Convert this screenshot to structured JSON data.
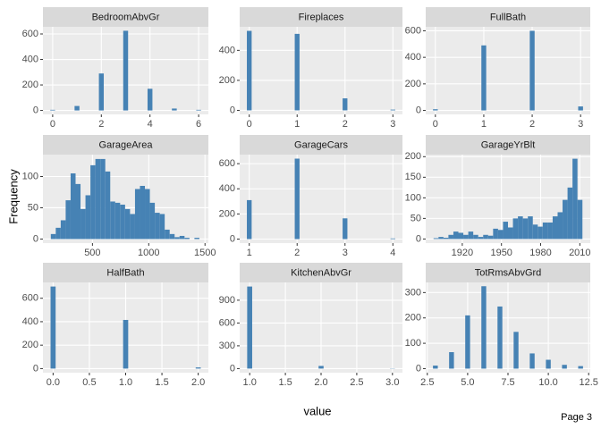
{
  "y_label": "Frequency",
  "x_label": "value",
  "page": "Page 3",
  "chart_data": [
    {
      "type": "histogram",
      "title": "BedroomAbvGr",
      "color": "#4682b4",
      "grid": true,
      "bins": [
        -0.1,
        0.1,
        0.9,
        1.1,
        1.9,
        2.1,
        2.9,
        3.1,
        3.9,
        4.1,
        4.9,
        5.1,
        5.9,
        6.1
      ],
      "counts": [
        5,
        0,
        35,
        0,
        290,
        0,
        625,
        0,
        170,
        0,
        15,
        0,
        5
      ],
      "xlim": [
        -0.4,
        6.4
      ],
      "ylim": [
        -31,
        656
      ],
      "xticks": [
        0,
        2,
        4,
        6
      ],
      "yticks": [
        0,
        200,
        400,
        600
      ]
    },
    {
      "type": "histogram",
      "title": "Fireplaces",
      "color": "#4682b4",
      "grid": true,
      "bins": [
        -0.05,
        0.05,
        0.95,
        1.05,
        1.95,
        2.05,
        2.95,
        3.05
      ],
      "counts": [
        530,
        0,
        510,
        0,
        80,
        0,
        5
      ],
      "xlim": [
        -0.2,
        3.2
      ],
      "ylim": [
        -27,
        557
      ],
      "xticks": [
        0,
        1,
        2,
        3
      ],
      "yticks": [
        0,
        200,
        400
      ]
    },
    {
      "type": "histogram",
      "title": "FullBath",
      "color": "#4682b4",
      "grid": true,
      "bins": [
        -0.05,
        0.05,
        0.95,
        1.05,
        1.95,
        2.05,
        2.95,
        3.05
      ],
      "counts": [
        9,
        0,
        490,
        0,
        600,
        0,
        30
      ],
      "xlim": [
        -0.2,
        3.2
      ],
      "ylim": [
        -30,
        630
      ],
      "xticks": [
        0,
        1,
        2,
        3
      ],
      "yticks": [
        0,
        200,
        400,
        600
      ]
    },
    {
      "type": "histogram",
      "title": "GarageArea",
      "color": "#4682b4",
      "grid": true,
      "bins": [
        130,
        174,
        218,
        262,
        306,
        350,
        394,
        438,
        482,
        526,
        570,
        614,
        658,
        702,
        746,
        790,
        834,
        878,
        922,
        966,
        1010,
        1054,
        1098,
        1142,
        1186,
        1230,
        1274,
        1318,
        1362,
        1406,
        1450
      ],
      "counts": [
        8,
        18,
        30,
        62,
        105,
        88,
        48,
        70,
        118,
        128,
        128,
        108,
        60,
        58,
        55,
        48,
        40,
        80,
        85,
        80,
        58,
        42,
        40,
        15,
        8,
        3,
        5,
        2,
        0,
        2
      ],
      "xlim": [
        60,
        1530
      ],
      "ylim": [
        -6.5,
        135
      ],
      "xticks": [
        500,
        1000,
        1500
      ],
      "yticks": [
        0,
        50,
        100
      ]
    },
    {
      "type": "histogram",
      "title": "GarageCars",
      "color": "#4682b4",
      "grid": true,
      "bins": [
        0.95,
        1.05,
        1.95,
        2.05,
        2.95,
        3.05,
        3.95,
        4.05
      ],
      "counts": [
        310,
        0,
        640,
        0,
        165,
        0,
        5
      ],
      "xlim": [
        0.8,
        4.2
      ],
      "ylim": [
        -32,
        672
      ],
      "xticks": [
        1,
        2,
        3,
        4
      ],
      "yticks": [
        0,
        200,
        400,
        600
      ]
    },
    {
      "type": "histogram",
      "title": "GarageYrBlt",
      "color": "#4682b4",
      "grid": true,
      "bins": [
        1898,
        1901.8,
        1905.6,
        1909.4,
        1913.2,
        1917,
        1920.8,
        1924.6,
        1928.4,
        1932.2,
        1936,
        1939.8,
        1943.6,
        1947.4,
        1951.2,
        1955,
        1958.8,
        1962.6,
        1966.4,
        1970.2,
        1974,
        1977.8,
        1981.6,
        1985.4,
        1989.2,
        1993,
        1996.8,
        2000.6,
        2004.4,
        2008.2,
        2012
      ],
      "counts": [
        2,
        5,
        3,
        10,
        18,
        15,
        10,
        18,
        10,
        5,
        10,
        8,
        25,
        22,
        42,
        28,
        50,
        55,
        50,
        55,
        35,
        30,
        40,
        40,
        55,
        65,
        95,
        125,
        195,
        95
      ],
      "xlim": [
        1892,
        2018
      ],
      "ylim": [
        -10,
        205
      ],
      "xticks": [
        1920,
        1950,
        1980,
        2010
      ],
      "yticks": [
        0,
        50,
        100,
        150,
        200
      ]
    },
    {
      "type": "histogram",
      "title": "HalfBath",
      "color": "#4682b4",
      "grid": true,
      "bins": [
        -0.035,
        0.035,
        0.965,
        1.035,
        1.965,
        2.035
      ],
      "counts": [
        700,
        0,
        415,
        0,
        10
      ],
      "xlim": [
        -0.14,
        2.14
      ],
      "ylim": [
        -35,
        735
      ],
      "xticks": [
        {
          "value": 0,
          "label": "0.0"
        },
        0.5,
        {
          "value": 1,
          "label": "1.0"
        },
        1.5,
        {
          "value": 2,
          "label": "2.0"
        }
      ],
      "yticks": [
        0,
        200,
        400,
        600
      ]
    },
    {
      "type": "histogram",
      "title": "KitchenAbvGr",
      "color": "#4682b4",
      "grid": true,
      "bins": [
        0.965,
        1.035,
        1.965,
        2.035,
        2.965,
        3.035
      ],
      "counts": [
        1080,
        0,
        35,
        0,
        3
      ],
      "xlim": [
        0.86,
        3.14
      ],
      "ylim": [
        -54,
        1134
      ],
      "xticks": [
        {
          "value": 1,
          "label": "1.0"
        },
        1.5,
        {
          "value": 2,
          "label": "2.0"
        },
        2.5,
        {
          "value": 3,
          "label": "3.0"
        }
      ],
      "yticks": [
        0,
        300,
        600,
        900
      ]
    },
    {
      "type": "histogram",
      "title": "TotRmsAbvGrd",
      "color": "#4682b4",
      "grid": true,
      "bins": [
        2.85,
        3.15,
        3.85,
        4.15,
        4.85,
        5.15,
        5.85,
        6.15,
        6.85,
        7.15,
        7.85,
        8.15,
        8.85,
        9.15,
        9.85,
        10.15,
        10.85,
        11.15,
        11.85,
        12.15
      ],
      "counts": [
        12,
        0,
        65,
        0,
        210,
        0,
        325,
        0,
        245,
        0,
        145,
        0,
        60,
        0,
        35,
        0,
        15,
        0,
        10
      ],
      "xlim": [
        2.4,
        12.6
      ],
      "ylim": [
        -16,
        340
      ],
      "xticks": [
        2.5,
        {
          "value": 5,
          "label": "5.0"
        },
        7.5,
        {
          "value": 10,
          "label": "10.0"
        },
        12.5
      ],
      "yticks": [
        0,
        100,
        200,
        300
      ]
    }
  ]
}
